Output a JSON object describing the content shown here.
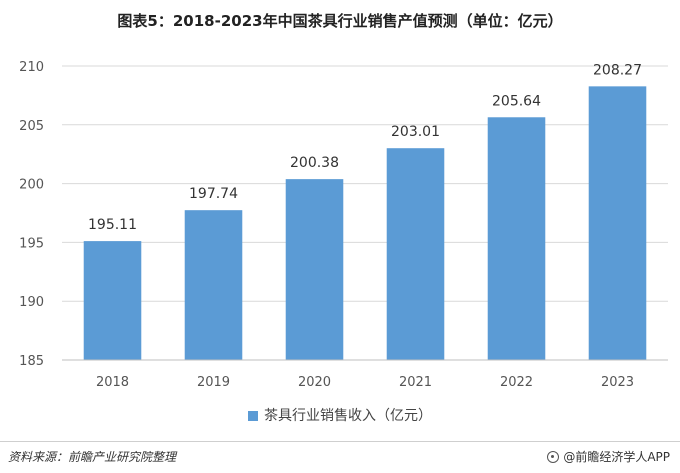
{
  "header": {
    "title": "图表5：2018-2023年中国茶具行业销售产值预测（单位：亿元）"
  },
  "footer": {
    "source": "资料来源：前瞻产业研究院整理",
    "app": "@前瞻经济学人APP"
  },
  "colors": {
    "bar": "#5b9bd5",
    "grid": "#d9d9d9"
  },
  "chart_data": {
    "type": "bar",
    "title": "图表5：2018-2023年中国茶具行业销售产值预测（单位：亿元）",
    "categories": [
      "2018",
      "2019",
      "2020",
      "2021",
      "2022",
      "2023"
    ],
    "series": [
      {
        "name": "茶具行业销售收入（亿元）",
        "values": [
          195.11,
          197.74,
          200.38,
          203.01,
          205.64,
          208.27
        ]
      }
    ],
    "data_labels": [
      "195.11",
      "197.74",
      "200.38",
      "203.01",
      "205.64",
      "208.27"
    ],
    "y_ticks": [
      185,
      190,
      195,
      200,
      205,
      210
    ],
    "y_tick_labels": [
      "185",
      "190",
      "195",
      "200",
      "205",
      "210"
    ],
    "ylim": [
      185,
      210
    ],
    "xlabel": "",
    "ylabel": "",
    "grid": true,
    "legend_position": "bottom"
  }
}
